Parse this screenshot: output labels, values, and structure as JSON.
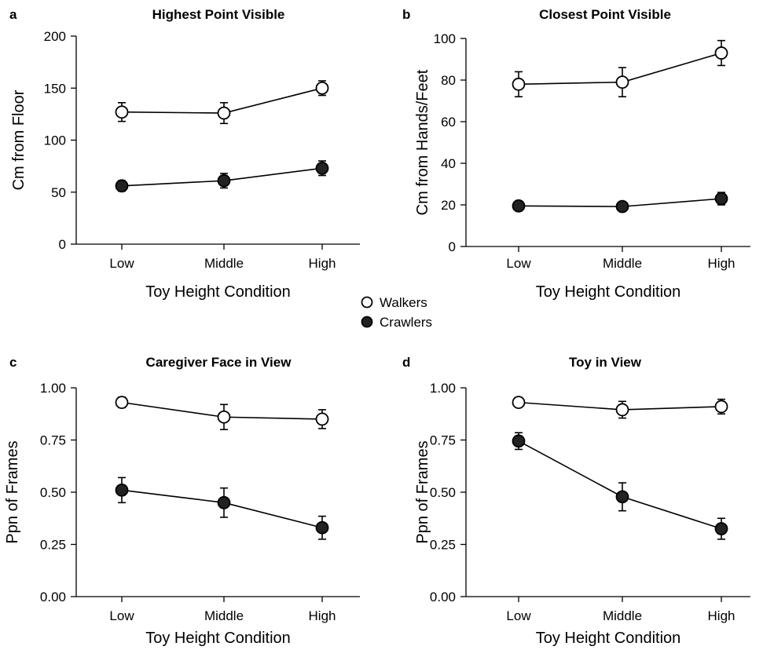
{
  "legend": {
    "walkers": "Walkers",
    "crawlers": "Crawlers"
  },
  "chart_data": [
    {
      "type": "line",
      "panel": "a",
      "title": "Highest Point Visible",
      "xlabel": "Toy Height Condition",
      "ylabel": "Cm from Floor",
      "categories": [
        "Low",
        "Middle",
        "High"
      ],
      "ylim": [
        0,
        200
      ],
      "yticks": [
        0,
        50,
        100,
        150,
        200
      ],
      "ytick_labels": [
        "0",
        "50",
        "100",
        "150",
        "200"
      ],
      "series": [
        {
          "name": "Walkers",
          "values": [
            127,
            126,
            150
          ],
          "err": [
            9,
            10,
            7
          ]
        },
        {
          "name": "Crawlers",
          "values": [
            56,
            61,
            73
          ],
          "err": [
            5,
            7,
            7
          ]
        }
      ]
    },
    {
      "type": "line",
      "panel": "b",
      "title": "Closest Point Visible",
      "xlabel": "Toy Height Condition",
      "ylabel": "Cm from Hands/Feet",
      "categories": [
        "Low",
        "Middle",
        "High"
      ],
      "ylim": [
        0,
        100
      ],
      "yticks": [
        0,
        20,
        40,
        60,
        80,
        100
      ],
      "ytick_labels": [
        "0",
        "20",
        "40",
        "60",
        "80",
        "100"
      ],
      "series": [
        {
          "name": "Walkers",
          "values": [
            78,
            79,
            93
          ],
          "err": [
            6,
            7,
            6
          ]
        },
        {
          "name": "Crawlers",
          "values": [
            19.5,
            19.2,
            23
          ],
          "err": [
            1,
            1.5,
            3
          ]
        }
      ]
    },
    {
      "type": "line",
      "panel": "c",
      "title": "Caregiver Face in View",
      "xlabel": "Toy Height Condition",
      "ylabel": "Ppn of Frames",
      "categories": [
        "Low",
        "Middle",
        "High"
      ],
      "ylim": [
        0,
        1
      ],
      "yticks": [
        0,
        0.25,
        0.5,
        0.75,
        1
      ],
      "ytick_labels": [
        "0.00",
        "0.25",
        "0.50",
        "0.75",
        "1.00"
      ],
      "series": [
        {
          "name": "Walkers",
          "values": [
            0.93,
            0.86,
            0.85
          ],
          "err": [
            0.025,
            0.06,
            0.045
          ]
        },
        {
          "name": "Crawlers",
          "values": [
            0.51,
            0.45,
            0.33
          ],
          "err": [
            0.06,
            0.07,
            0.055
          ]
        }
      ]
    },
    {
      "type": "line",
      "panel": "d",
      "title": "Toy in View",
      "xlabel": "Toy Height Condition",
      "ylabel": "Ppn of Frames",
      "categories": [
        "Low",
        "Middle",
        "High"
      ],
      "ylim": [
        0,
        1
      ],
      "yticks": [
        0,
        0.25,
        0.5,
        0.75,
        1
      ],
      "ytick_labels": [
        "0.00",
        "0.25",
        "0.50",
        "0.75",
        "1.00"
      ],
      "series": [
        {
          "name": "Walkers",
          "values": [
            0.93,
            0.895,
            0.91
          ],
          "err": [
            0.015,
            0.04,
            0.035
          ]
        },
        {
          "name": "Crawlers",
          "values": [
            0.745,
            0.478,
            0.325
          ],
          "err": [
            0.04,
            0.067,
            0.05
          ]
        }
      ]
    }
  ]
}
